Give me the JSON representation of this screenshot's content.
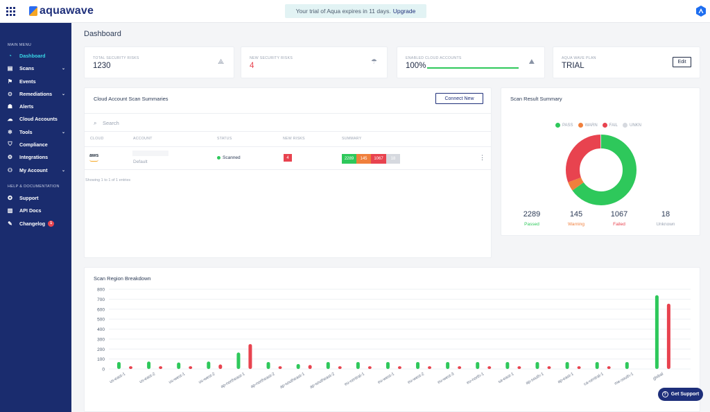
{
  "header": {
    "brand": "aquawave",
    "trial_text": "Your trial of Aqua expires in 11 days.",
    "upgrade_label": "Upgrade"
  },
  "sidebar": {
    "main_menu_label": "MAIN MENU",
    "items": [
      {
        "label": "Dashboard",
        "icon": "dashboard-icon",
        "active": true,
        "chevron": false
      },
      {
        "label": "Scans",
        "icon": "scans-icon",
        "chevron": true
      },
      {
        "label": "Events",
        "icon": "flag-icon",
        "chevron": false
      },
      {
        "label": "Remediations",
        "icon": "remediations-icon",
        "chevron": true
      },
      {
        "label": "Alerts",
        "icon": "alerts-icon",
        "chevron": false
      },
      {
        "label": "Cloud Accounts",
        "icon": "cloud-accounts-icon",
        "chevron": false
      },
      {
        "label": "Tools",
        "icon": "tools-icon",
        "chevron": true
      },
      {
        "label": "Compliance",
        "icon": "shield-icon",
        "chevron": false
      },
      {
        "label": "Integrations",
        "icon": "integrations-icon",
        "chevron": false
      },
      {
        "label": "My Account",
        "icon": "account-icon",
        "chevron": true
      }
    ],
    "help_label": "HELP & DOCUMENTATION",
    "help_items": [
      {
        "label": "Support",
        "icon": "support-icon"
      },
      {
        "label": "API Docs",
        "icon": "book-icon"
      },
      {
        "label": "Changelog",
        "icon": "changelog-icon",
        "badge": "1"
      }
    ]
  },
  "page_title": "Dashboard",
  "stats": {
    "total_risks": {
      "label": "TOTAL SECURITY RISKS",
      "value": "1230"
    },
    "new_risks": {
      "label": "NEW SECURITY RISKS",
      "value": "4"
    },
    "cloud_accounts": {
      "label": "ENABLED CLOUD ACCOUNTS",
      "value": "100%",
      "progress": 1.0
    },
    "plan": {
      "label": "AQUA WAVE PLAN",
      "value": "TRIAL",
      "edit_label": "Edit"
    }
  },
  "scan_summaries": {
    "title": "Cloud Account Scan Summaries",
    "connect_label": "Connect New",
    "search_placeholder": "Search",
    "columns": [
      "CLOUD",
      "ACCOUNT",
      "STATUS",
      "NEW RISKS",
      "SUMMARY"
    ],
    "row": {
      "cloud": "aws",
      "account": "Default",
      "status": "Scanned",
      "new_risks": "4",
      "summary": [
        "2289",
        "145",
        "1067",
        "18"
      ]
    },
    "showing": "Showing 1 to 1 of 1 entries"
  },
  "result_summary": {
    "title": "Scan Result Summary",
    "legend": [
      "PASS",
      "WARN",
      "FAIL",
      "UNKN"
    ],
    "stats": [
      {
        "value": "2289",
        "label": "Passed",
        "color": "#2ec85b"
      },
      {
        "value": "145",
        "label": "Warning",
        "color": "#f07f3c"
      },
      {
        "value": "1067",
        "label": "Failed",
        "color": "#e8434f"
      },
      {
        "value": "18",
        "label": "Unknown",
        "color": "#9aa3b2"
      }
    ]
  },
  "region_breakdown": {
    "title": "Scan Region Breakdown"
  },
  "support_label": "Get Support",
  "chart_data": [
    {
      "type": "pie",
      "title": "",
      "categories": [
        "PASS",
        "WARN",
        "FAIL",
        "UNKN"
      ],
      "values": [
        2289,
        145,
        1067,
        18
      ],
      "colors": [
        "#2ec85b",
        "#f07f3c",
        "#e8434f",
        "#d6d9df"
      ],
      "legend": "top"
    },
    {
      "type": "bar",
      "title": "",
      "categories": [
        "us-east-1",
        "us-east-2",
        "us-west-1",
        "us-west-2",
        "ap-northeast-1",
        "ap-northeast-2",
        "ap-southeast-1",
        "ap-southeast-2",
        "eu-central-1",
        "eu-west-1",
        "eu-west-2",
        "eu-west-3",
        "eu-north-1",
        "sa-east-1",
        "ap-south-1",
        "ap-east-1",
        "ca-central-1",
        "me-south-1",
        "global"
      ],
      "series": [
        {
          "name": "PASS",
          "color": "#2ec85b",
          "values": [
            70,
            75,
            65,
            75,
            165,
            70,
            50,
            70,
            70,
            70,
            70,
            70,
            70,
            70,
            70,
            70,
            70,
            70,
            740
          ]
        },
        {
          "name": "FAIL",
          "color": "#e8434f",
          "values": [
            22,
            28,
            12,
            45,
            250,
            5,
            40,
            5,
            5,
            5,
            5,
            5,
            15,
            5,
            5,
            5,
            5,
            0,
            655
          ]
        }
      ],
      "ylim": [
        0,
        800
      ],
      "yticks": [
        0,
        100,
        200,
        300,
        400,
        500,
        600,
        700,
        800
      ],
      "grid": true
    }
  ]
}
